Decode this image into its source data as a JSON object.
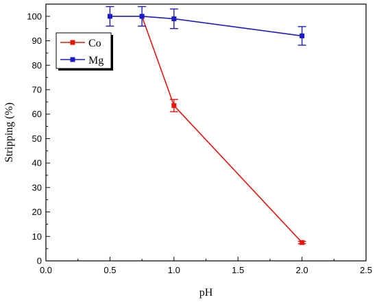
{
  "chart_data": {
    "type": "line",
    "xlabel": "pH",
    "ylabel": "Stripping (%)",
    "xlim": [
      0.0,
      2.5
    ],
    "ylim": [
      0,
      105
    ],
    "x_ticks": [
      "0.0",
      "0.5",
      "1.0",
      "1.5",
      "2.0",
      "2.5"
    ],
    "y_ticks": [
      "0",
      "10",
      "20",
      "30",
      "40",
      "50",
      "60",
      "70",
      "80",
      "90",
      "100"
    ],
    "grid": false,
    "legend_position": "top-left",
    "series": [
      {
        "name": "Co",
        "color": "#e8140c",
        "points": [
          {
            "x": 0.75,
            "y": 100,
            "err": 0
          },
          {
            "x": 1.0,
            "y": 63.5,
            "err": 2.5
          },
          {
            "x": 2.0,
            "y": 7.5,
            "err": 0.5
          }
        ]
      },
      {
        "name": "Mg",
        "color": "#1a1ac8",
        "points": [
          {
            "x": 0.5,
            "y": 100,
            "err": 4
          },
          {
            "x": 0.75,
            "y": 100,
            "err": 4
          },
          {
            "x": 1.0,
            "y": 99,
            "err": 4
          },
          {
            "x": 2.0,
            "y": 92,
            "err": 3.8
          }
        ]
      }
    ]
  }
}
